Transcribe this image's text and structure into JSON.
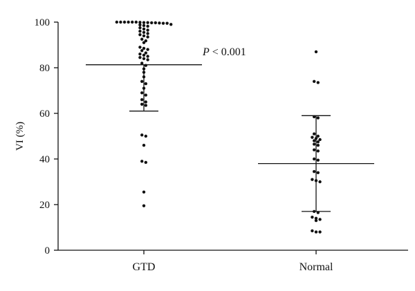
{
  "chart_data": {
    "type": "scatter",
    "subtype": "dot-plot-with-mean-sd",
    "ylabel": "VI (%)",
    "ylim": [
      0,
      100
    ],
    "yticks": [
      0,
      20,
      40,
      60,
      80,
      100
    ],
    "categories": [
      "GTD",
      "Normal"
    ],
    "annotation": {
      "prefix": "P",
      "text": " < 0.001"
    },
    "groups": [
      {
        "name": "GTD",
        "mean": 81.3,
        "sd_lower": 61.0,
        "values": [
          100,
          100,
          100,
          100,
          99.8,
          99.6,
          99.5,
          99.7,
          99.9,
          100,
          100,
          99.8,
          99.5,
          99.7,
          99.0,
          98.8,
          98.5,
          98.2,
          97.5,
          97.0,
          96.5,
          96.0,
          95.5,
          95.0,
          94.5,
          94.0,
          93.5,
          92.5,
          91.8,
          91.0,
          89.0,
          88.5,
          88.0,
          87.5,
          86.5,
          86.0,
          85.5,
          85.0,
          84.5,
          84.0,
          83.5,
          82.0,
          81.0,
          79.5,
          78.0,
          76.0,
          74.0,
          73.0,
          71.0,
          69.0,
          68.0,
          66.0,
          65.0,
          64.0,
          63.5,
          50.5,
          50.0,
          46.0,
          39.0,
          38.5,
          25.5,
          19.5
        ]
      },
      {
        "name": "Normal",
        "mean": 38.0,
        "sd_upper": 59.0,
        "sd_lower": 17.0,
        "values": [
          87.0,
          74.0,
          73.5,
          58.5,
          58.0,
          51.0,
          50.0,
          49.5,
          49.0,
          48.5,
          48.0,
          47.5,
          46.5,
          46.0,
          44.0,
          43.5,
          40.0,
          39.5,
          34.5,
          34.0,
          31.0,
          30.5,
          30.0,
          17.0,
          16.5,
          14.5,
          14.0,
          13.5,
          13.0,
          8.5,
          8.0,
          8.0
        ]
      }
    ]
  }
}
